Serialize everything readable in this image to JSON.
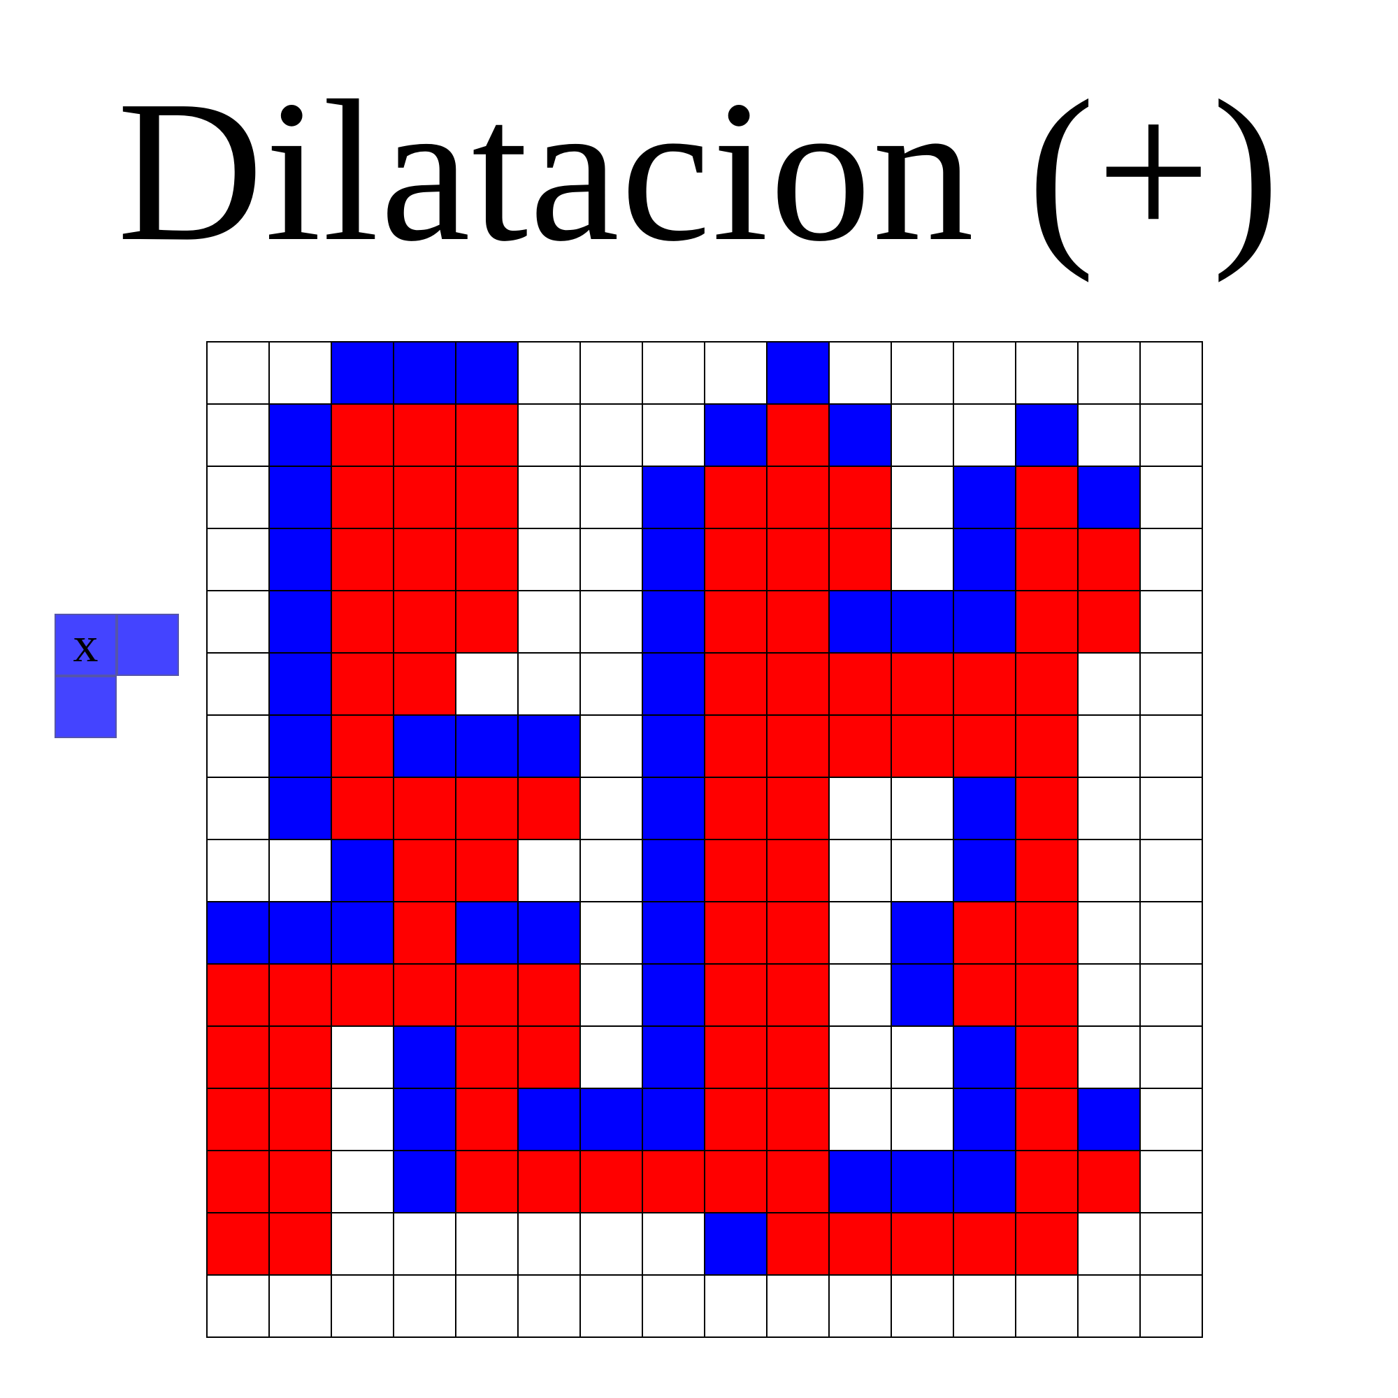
{
  "title": "Dilatacion (+)",
  "colors": {
    "white": "#ffffff",
    "blue": "#0000ff",
    "red": "#ff0000",
    "structuring_element": "#4444ff",
    "grid_line": "#000000"
  },
  "structuring_element": {
    "origin_label": "x",
    "cells": [
      [
        1,
        1
      ],
      [
        1,
        0
      ]
    ]
  },
  "grid": [
    "wwbbbwwwwbwwwwww",
    "wbrrrwwwbrbwwbww",
    "wbrrrwwbrrrwbrbw",
    "wbrrrwwbrrrwbrrw",
    "wbrrrwwbrrbbbrrw",
    "wbrrwwwbrrrrrrww",
    "wbrbbbwbrrrrrrww",
    "wbrrrrwbrrwwbrww",
    "wwbrrwwbrrwwbrww",
    "bbbrbbwbrrwbrrww",
    "rrrrrrwbrrwbrrww",
    "rrwbrrwbrrwwbrww",
    "rrwbrbbbrrwwbrbw",
    "rrwbrrrrrrbbbrrw",
    "rrwwwwwwbrrrrrww",
    "wwwwwwwwwwwwwwww"
  ]
}
